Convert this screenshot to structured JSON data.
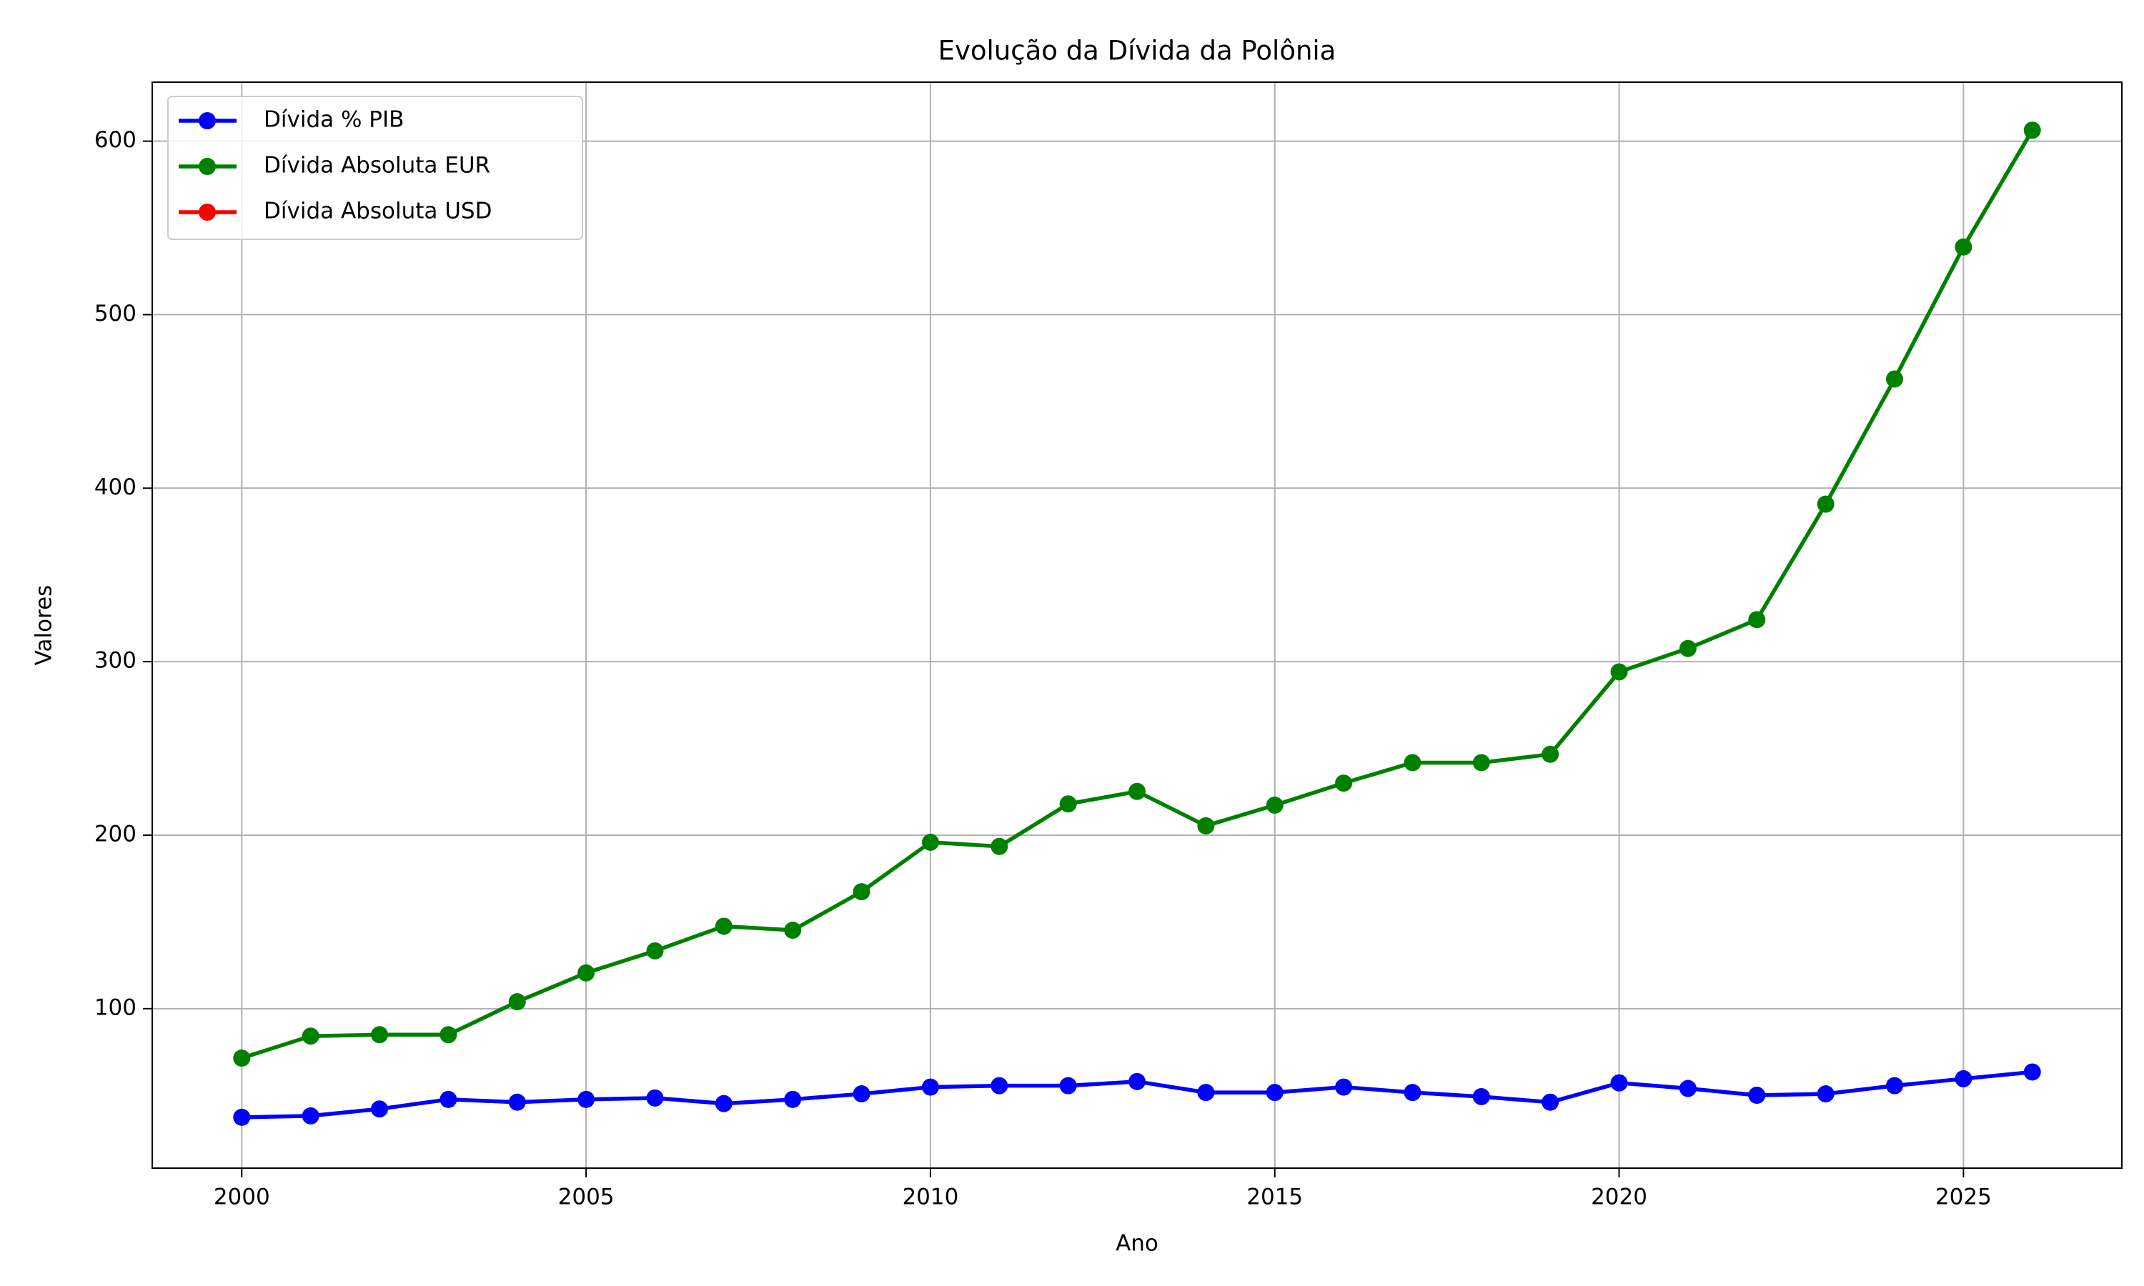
{
  "chart_data": {
    "type": "line",
    "title": "Evolução da Dívida da Polônia",
    "x_label": "Ano",
    "y_label": "Valores",
    "x": [
      2000,
      2001,
      2002,
      2003,
      2004,
      2005,
      2006,
      2007,
      2008,
      2009,
      2010,
      2011,
      2012,
      2013,
      2014,
      2015,
      2016,
      2017,
      2018,
      2019,
      2020,
      2021,
      2022,
      2023,
      2024,
      2025,
      2026
    ],
    "series": [
      {
        "name": "Dívida % PIB",
        "color": "#0000ff",
        "values": [
          37.4,
          38.2,
          42.2,
          47.7,
          46.1,
          47.7,
          48.5,
          45.3,
          47.7,
          50.9,
          54.8,
          55.6,
          55.6,
          58,
          51.7,
          51.7,
          54.8,
          51.7,
          49.3,
          46.1,
          57.2,
          54,
          50.1,
          50.9,
          55.6,
          59.6,
          63.5
        ]
      },
      {
        "name": "Dívida Absoluta EUR",
        "color": "#008000",
        "values": [
          71.5,
          84.2,
          85,
          85,
          104,
          120.6,
          133.3,
          147.5,
          145.2,
          167.4,
          195.9,
          193.5,
          218,
          225.2,
          205.4,
          217.3,
          230,
          241.8,
          241.8,
          246.6,
          294.1,
          307.6,
          324.2,
          390.8,
          462.9,
          539,
          606.3
        ]
      },
      {
        "name": "Dívida Absoluta USD",
        "color": "#ff0000",
        "values": [
          null,
          null,
          null,
          null,
          null,
          null,
          null,
          null,
          null,
          null,
          null,
          null,
          null,
          null,
          null,
          null,
          null,
          null,
          null,
          null,
          null,
          null,
          null,
          null,
          null,
          null,
          null
        ]
      }
    ],
    "xlim": [
      1998.7,
      2027.3
    ],
    "xticks": [
      2000,
      2005,
      2010,
      2015,
      2020,
      2025
    ],
    "ylim": [
      8.1,
      634
    ],
    "yticks": [
      100,
      200,
      300,
      400,
      500,
      600
    ],
    "grid": true,
    "legend": "upper left"
  }
}
